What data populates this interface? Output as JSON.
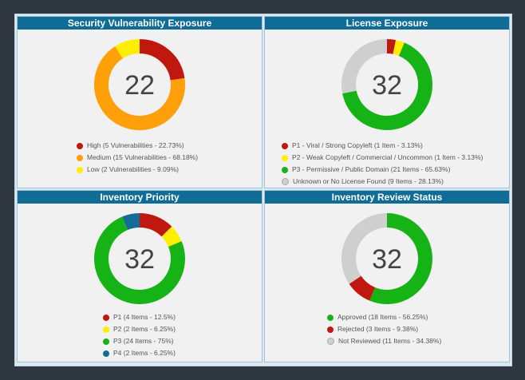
{
  "chart_data": [
    {
      "type": "pie",
      "id": "security",
      "title": "Security Vulnerability Exposure",
      "center_total": "22",
      "slices": [
        {
          "label": "High (5 Vulnerabilities - 22.73%)",
          "value": 5,
          "color": "#c0170f"
        },
        {
          "label": "Medium (15 Vulnerabilities - 68.18%)",
          "value": 15,
          "color": "#ff9f0a"
        },
        {
          "label": "Low (2 Vulnerabilities - 9.09%)",
          "value": 2,
          "color": "#ffee00"
        }
      ]
    },
    {
      "type": "pie",
      "id": "license",
      "title": "License Exposure",
      "center_total": "32",
      "slices": [
        {
          "label": "P1 - Viral / Strong Copyleft (1 Item - 3.13%)",
          "value": 1,
          "color": "#c0170f"
        },
        {
          "label": "P2 - Weak Copyleft / Commercial / Uncommon (1 Item - 3.13%)",
          "value": 1,
          "color": "#ffee00"
        },
        {
          "label": "P3 - Permissive / Public Domain (21 Items - 65.63%)",
          "value": 21,
          "color": "#15b315"
        },
        {
          "label": "Unknown or No License Found (9 Items - 28.13%)",
          "value": 9,
          "color": "#cfcfcf"
        }
      ]
    },
    {
      "type": "pie",
      "id": "priority",
      "title": "Inventory Priority",
      "center_total": "32",
      "slices": [
        {
          "label": "P1 (4 Items - 12.5%)",
          "value": 4,
          "color": "#c0170f"
        },
        {
          "label": "P2 (2 Items - 6.25%)",
          "value": 2,
          "color": "#ffee00"
        },
        {
          "label": "P3 (24 Items - 75%)",
          "value": 24,
          "color": "#15b315"
        },
        {
          "label": "P4 (2 Items - 6.25%)",
          "value": 2,
          "color": "#136c97"
        }
      ]
    },
    {
      "type": "pie",
      "id": "review",
      "title": "Inventory Review Status",
      "center_total": "32",
      "slices": [
        {
          "label": "Approved (18 Items - 56.25%)",
          "value": 18,
          "color": "#15b315"
        },
        {
          "label": "Rejected (3 Items - 9.38%)",
          "value": 3,
          "color": "#c0170f"
        },
        {
          "label": "Not Reviewed (11 Items - 34.38%)",
          "value": 11,
          "color": "#cfcfcf"
        }
      ]
    }
  ]
}
